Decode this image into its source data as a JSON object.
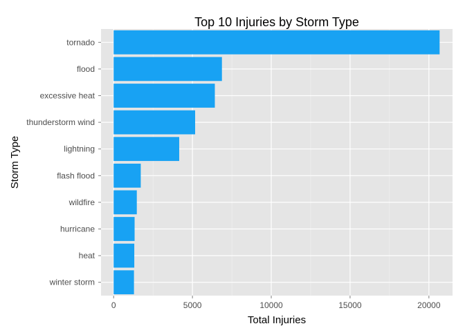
{
  "chart_data": {
    "type": "bar",
    "orientation": "horizontal",
    "title": "Top 10 Injuries by Storm Type",
    "xlabel": "Total Injuries",
    "ylabel": "Storm Type",
    "categories": [
      "tornado",
      "flood",
      "excessive heat",
      "thunderstorm wind",
      "lightning",
      "flash flood",
      "wildfire",
      "hurricane",
      "heat",
      "winter storm"
    ],
    "values": [
      20680,
      6870,
      6420,
      5170,
      4160,
      1720,
      1470,
      1330,
      1310,
      1290
    ],
    "xlim": [
      -800,
      21500
    ],
    "xticks": [
      0,
      5000,
      10000,
      15000,
      20000
    ],
    "grid": true,
    "legend": "none",
    "colors": {
      "bar": "#18a2f3",
      "panel": "#e5e5e5",
      "grid_major": "#ffffff",
      "grid_minor": "#f2f2f2"
    }
  }
}
